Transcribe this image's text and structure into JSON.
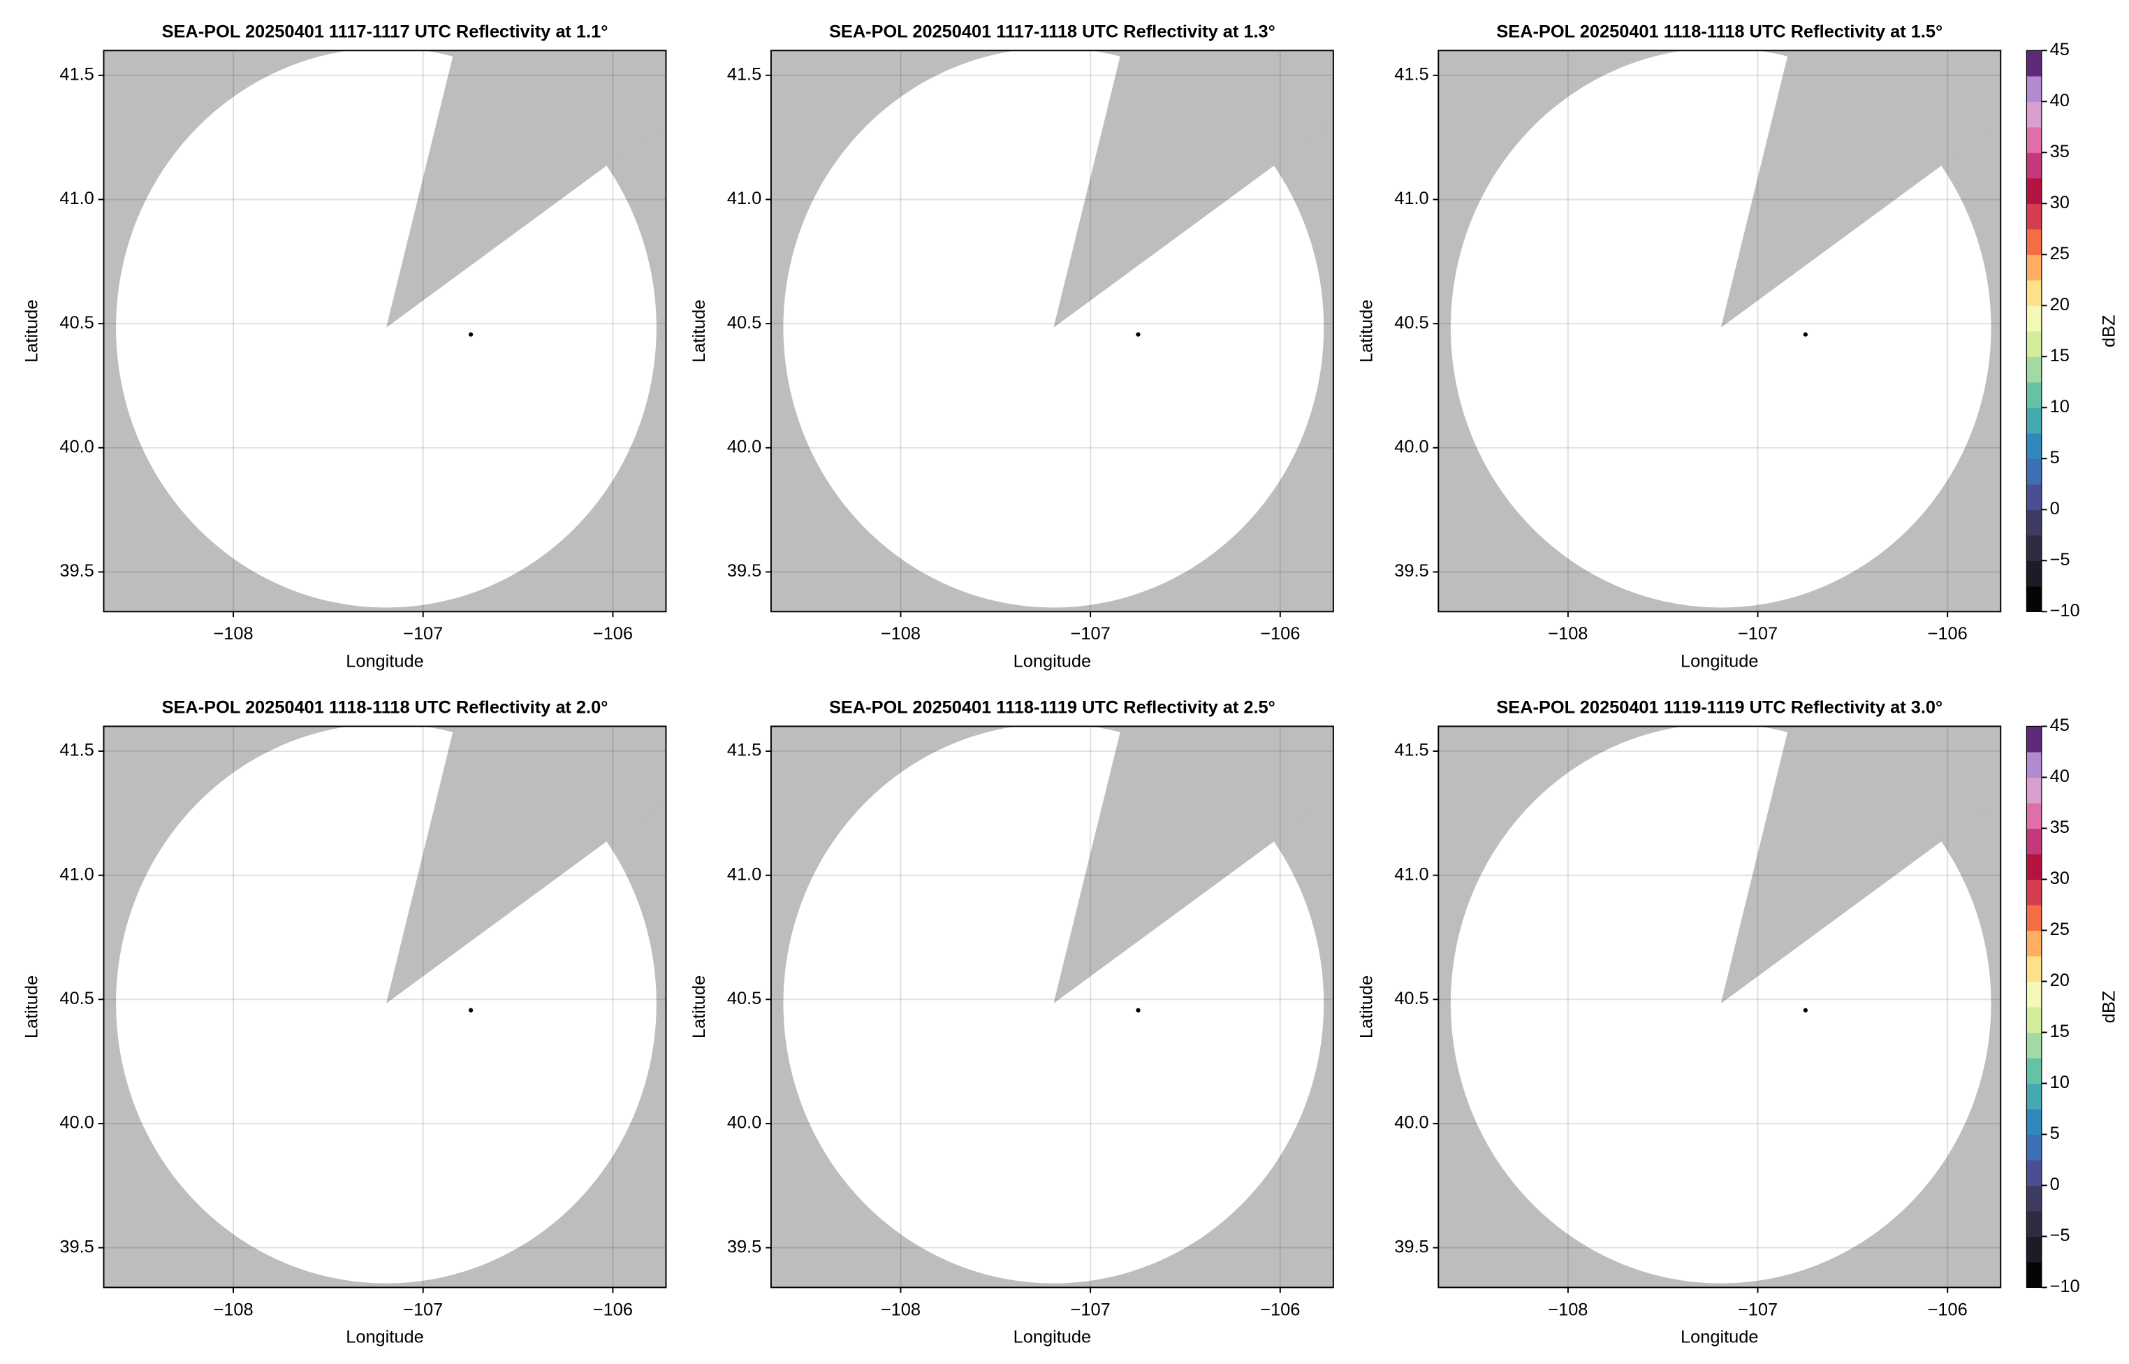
{
  "chart_data": [
    {
      "type": "ppi",
      "title": "SEA-POL 20250401 1117-1117 UTC Reflectivity at 1.1°",
      "xlabel": "Longitude",
      "ylabel": "Latitude",
      "xlim": [
        -108.683,
        -105.72
      ],
      "ylim": [
        39.34,
        41.6
      ],
      "xticks": [
        {
          "value": -108,
          "label": "−108"
        },
        {
          "value": -107,
          "label": "−107"
        },
        {
          "value": -106,
          "label": "−106"
        }
      ],
      "yticks": [
        {
          "value": 39.5,
          "label": "39.5"
        },
        {
          "value": 40.0,
          "label": "40.0"
        },
        {
          "value": 40.5,
          "label": "40.5"
        },
        {
          "value": 41.0,
          "label": "41.0"
        },
        {
          "value": 41.5,
          "label": "41.5"
        }
      ],
      "grid": true
    },
    {
      "type": "ppi",
      "title": "SEA-POL 20250401 1117-1118 UTC Reflectivity at 1.3°",
      "xlabel": "Longitude",
      "ylabel": "Latitude",
      "xlim": [
        -108.683,
        -105.72
      ],
      "ylim": [
        39.34,
        41.6
      ],
      "xticks": [
        {
          "value": -108,
          "label": "−108"
        },
        {
          "value": -107,
          "label": "−107"
        },
        {
          "value": -106,
          "label": "−106"
        }
      ],
      "yticks": [
        {
          "value": 39.5,
          "label": "39.5"
        },
        {
          "value": 40.0,
          "label": "40.0"
        },
        {
          "value": 40.5,
          "label": "40.5"
        },
        {
          "value": 41.0,
          "label": "41.0"
        },
        {
          "value": 41.5,
          "label": "41.5"
        }
      ],
      "grid": true
    },
    {
      "type": "ppi",
      "title": "SEA-POL 20250401 1118-1118 UTC Reflectivity at 1.5°",
      "xlabel": "Longitude",
      "ylabel": "Latitude",
      "xlim": [
        -108.683,
        -105.72
      ],
      "ylim": [
        39.34,
        41.6
      ],
      "xticks": [
        {
          "value": -108,
          "label": "−108"
        },
        {
          "value": -107,
          "label": "−107"
        },
        {
          "value": -106,
          "label": "−106"
        }
      ],
      "yticks": [
        {
          "value": 39.5,
          "label": "39.5"
        },
        {
          "value": 40.0,
          "label": "40.0"
        },
        {
          "value": 40.5,
          "label": "40.5"
        },
        {
          "value": 41.0,
          "label": "41.0"
        },
        {
          "value": 41.5,
          "label": "41.5"
        }
      ],
      "grid": true,
      "colorbar": {
        "label": "dBZ",
        "lim": [
          -10,
          45
        ],
        "ticks": [
          {
            "value": -10,
            "label": "−10"
          },
          {
            "value": -5,
            "label": "−5"
          },
          0,
          5,
          10,
          15,
          20,
          25,
          30,
          35,
          40,
          45
        ],
        "colors": [
          "#050505",
          "#1c1b26",
          "#2f2c42",
          "#3e3c62",
          "#4a4f94",
          "#3d6fb5",
          "#3288bd",
          "#45a9b0",
          "#66c2a5",
          "#a3d9a3",
          "#d4ed9c",
          "#f5f9b8",
          "#fee08b",
          "#fdae61",
          "#f46d43",
          "#d53e4f",
          "#b5133f",
          "#c4397a",
          "#e06fa8",
          "#d9a0cf",
          "#b28ad0",
          "#5e2a78"
        ]
      }
    },
    {
      "type": "ppi",
      "title": "SEA-POL 20250401 1118-1118 UTC Reflectivity at 2.0°",
      "xlabel": "Longitude",
      "ylabel": "Latitude",
      "xlim": [
        -108.683,
        -105.72
      ],
      "ylim": [
        39.34,
        41.6
      ],
      "xticks": [
        {
          "value": -108,
          "label": "−108"
        },
        {
          "value": -107,
          "label": "−107"
        },
        {
          "value": -106,
          "label": "−106"
        }
      ],
      "yticks": [
        {
          "value": 39.5,
          "label": "39.5"
        },
        {
          "value": 40.0,
          "label": "40.0"
        },
        {
          "value": 40.5,
          "label": "40.5"
        },
        {
          "value": 41.0,
          "label": "41.0"
        },
        {
          "value": 41.5,
          "label": "41.5"
        }
      ],
      "grid": true
    },
    {
      "type": "ppi",
      "title": "SEA-POL 20250401 1118-1119 UTC Reflectivity at 2.5°",
      "xlabel": "Longitude",
      "ylabel": "Latitude",
      "xlim": [
        -108.683,
        -105.72
      ],
      "ylim": [
        39.34,
        41.6
      ],
      "xticks": [
        {
          "value": -108,
          "label": "−108"
        },
        {
          "value": -107,
          "label": "−107"
        },
        {
          "value": -106,
          "label": "−106"
        }
      ],
      "yticks": [
        {
          "value": 39.5,
          "label": "39.5"
        },
        {
          "value": 40.0,
          "label": "40.0"
        },
        {
          "value": 40.5,
          "label": "40.5"
        },
        {
          "value": 41.0,
          "label": "41.0"
        },
        {
          "value": 41.5,
          "label": "41.5"
        }
      ],
      "grid": true
    },
    {
      "type": "ppi",
      "title": "SEA-POL 20250401 1119-1119 UTC Reflectivity at 3.0°",
      "xlabel": "Longitude",
      "ylabel": "Latitude",
      "xlim": [
        -108.683,
        -105.72
      ],
      "ylim": [
        39.34,
        41.6
      ],
      "xticks": [
        {
          "value": -108,
          "label": "−108"
        },
        {
          "value": -107,
          "label": "−107"
        },
        {
          "value": -106,
          "label": "−106"
        }
      ],
      "yticks": [
        {
          "value": 39.5,
          "label": "39.5"
        },
        {
          "value": 40.0,
          "label": "40.0"
        },
        {
          "value": 40.5,
          "label": "40.5"
        },
        {
          "value": 41.0,
          "label": "41.0"
        },
        {
          "value": 41.5,
          "label": "41.5"
        }
      ],
      "grid": true,
      "colorbar": {
        "label": "dBZ",
        "lim": [
          -10,
          45
        ],
        "ticks": [
          {
            "value": -10,
            "label": "−10"
          },
          {
            "value": -5,
            "label": "−5"
          },
          0,
          5,
          10,
          15,
          20,
          25,
          30,
          35,
          40,
          45
        ],
        "colors": [
          "#050505",
          "#1c1b26",
          "#2f2c42",
          "#3e3c62",
          "#4a4f94",
          "#3d6fb5",
          "#3288bd",
          "#45a9b0",
          "#66c2a5",
          "#a3d9a3",
          "#d4ed9c",
          "#f5f9b8",
          "#fee08b",
          "#fdae61",
          "#f46d43",
          "#d53e4f",
          "#b5133f",
          "#c4397a",
          "#e06fa8",
          "#d9a0cf",
          "#b28ad0",
          "#5e2a78"
        ]
      }
    }
  ]
}
